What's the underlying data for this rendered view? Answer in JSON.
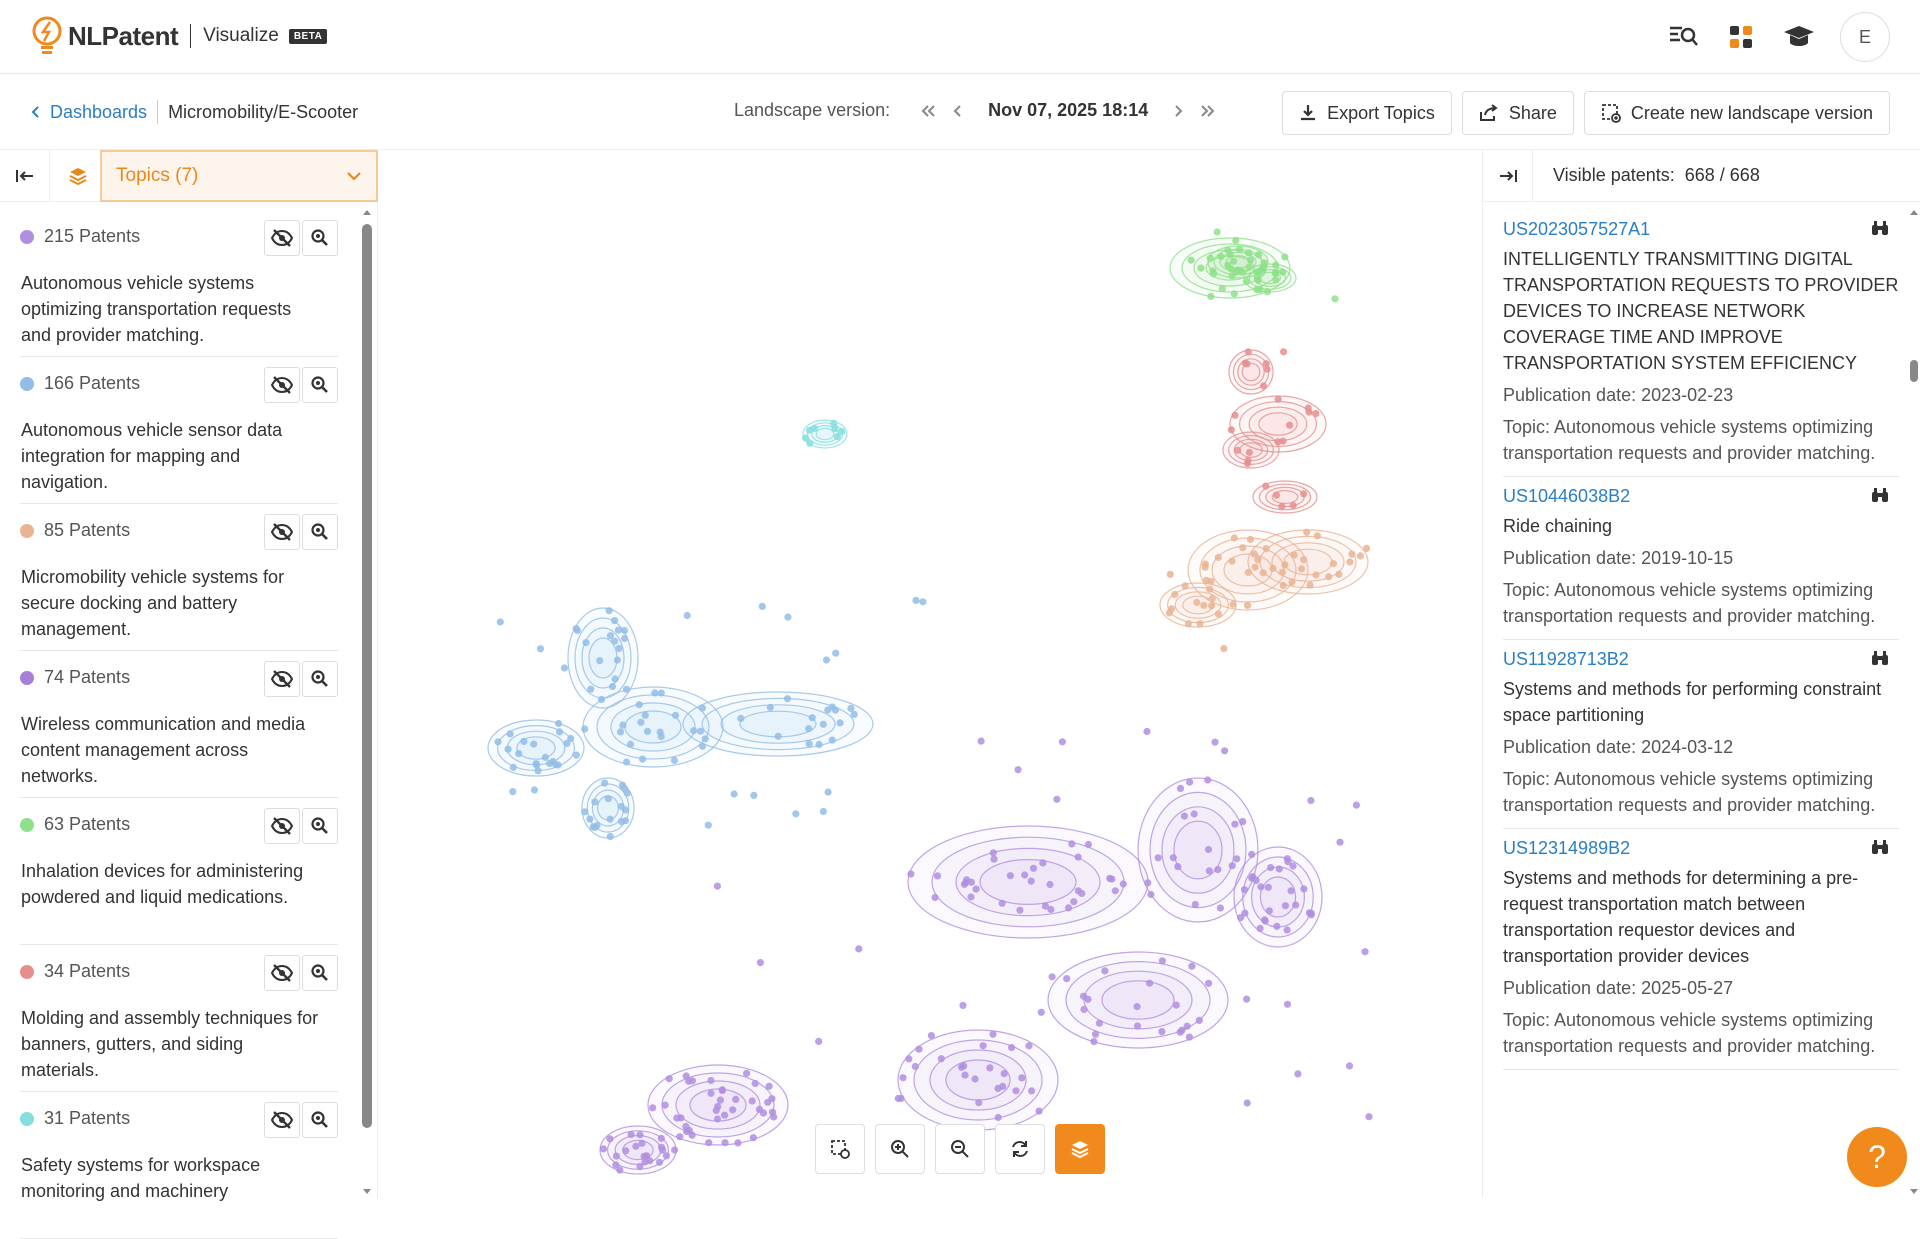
{
  "header": {
    "brand": "NLPatent",
    "product": "Visualize",
    "badge": "BETA",
    "avatar_initial": "E",
    "icons": [
      "search-chat-icon",
      "apps-grid-icon",
      "graduation-cap-icon"
    ],
    "brand_color": "#f08a1c"
  },
  "subbar": {
    "back_label": "Dashboards",
    "current": "Micromobility/E-Scooter",
    "version_label": "Landscape version:",
    "version_date": "Nov 07, 2025 18:14",
    "export_label": "Export Topics",
    "share_label": "Share",
    "create_label": "Create new landscape version"
  },
  "left": {
    "topics_label": "Topics (7)",
    "topics": [
      {
        "count": "215 Patents",
        "desc": "Autonomous vehicle systems optimizing transportation requests and provider matching.",
        "color": "#b08ee0"
      },
      {
        "count": "166 Patents",
        "desc": "Autonomous vehicle sensor data integration for mapping and navigation.",
        "color": "#92bde6"
      },
      {
        "count": "85 Patents",
        "desc": "Micromobility vehicle systems for secure docking and battery management.",
        "color": "#e8b494"
      },
      {
        "count": "74 Patents",
        "desc": "Wireless communication and media content management across networks.",
        "color": "#a77fd6"
      },
      {
        "count": "63 Patents",
        "desc": "Inhalation devices for administering powdered and liquid medications.",
        "color": "#8ee08a"
      },
      {
        "count": "34 Patents",
        "desc": "Molding and assembly techniques for banners, gutters, and siding materials.",
        "color": "#e58e8e"
      },
      {
        "count": "31 Patents",
        "desc": "Safety systems for workspace monitoring and machinery",
        "color": "#86dede"
      }
    ]
  },
  "right": {
    "visible_label": "Visible patents:",
    "visible_count": "668 / 668",
    "patents": [
      {
        "id": "US2023057527A1",
        "title": "INTELLIGENTLY TRANSMITTING DIGITAL TRANSPORTATION REQUESTS TO PROVIDER DEVICES TO INCREASE NETWORK COVERAGE TIME AND IMPROVE TRANSPORTATION SYSTEM EFFICIENCY",
        "date": "Publication date: 2023-02-23",
        "topic": "Topic: Autonomous vehicle systems optimizing transportation requests and provider matching."
      },
      {
        "id": "US10446038B2",
        "title": "Ride chaining",
        "date": "Publication date: 2019-10-15",
        "topic": "Topic: Autonomous vehicle systems optimizing transportation requests and provider matching."
      },
      {
        "id": "US11928713B2",
        "title": "Systems and methods for performing constraint space partitioning",
        "date": "Publication date: 2024-03-12",
        "topic": "Topic: Autonomous vehicle systems optimizing transportation requests and provider matching."
      },
      {
        "id": "US12314989B2",
        "title": "Systems and methods for determining a pre-request transportation match between transportation requestor devices and transportation provider devices",
        "date": "Publication date: 2025-05-27",
        "topic": "Topic: Autonomous vehicle systems optimizing transportation requests and provider matching."
      }
    ]
  }
}
